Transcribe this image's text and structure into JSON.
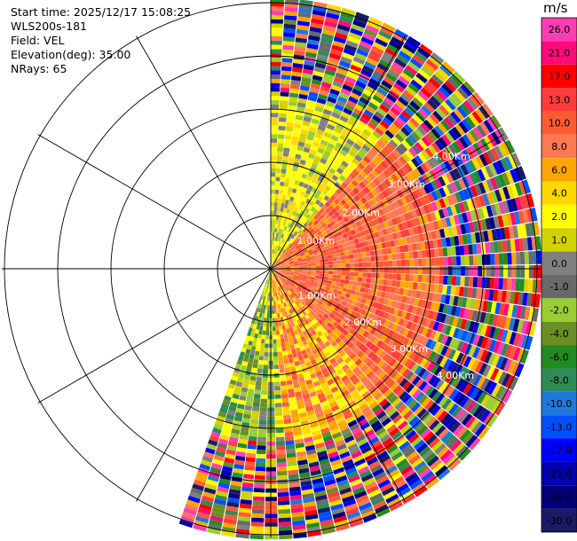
{
  "header": {
    "start_time": "Start time: 2025/12/17 15:08:25",
    "instrument": "WLS200s-181",
    "field": "Field: VEL",
    "elevation": "Elevation(deg): 35.00",
    "nrays": "NRays: 65"
  },
  "chart_data": {
    "type": "heatmap",
    "projection": "polar PPI",
    "field": "VEL",
    "units": "m/s",
    "range_rings_km": [
      1.0,
      2.0,
      3.0,
      4.0,
      5.0
    ],
    "range_ring_labels": [
      "1.00Km",
      "2.00Km",
      "3.00Km",
      "4.00Km"
    ],
    "azimuth_spokes_deg": [
      0,
      30,
      60,
      90,
      120,
      150,
      180,
      210,
      240,
      270,
      300,
      330
    ],
    "sector_azimuth_deg": [
      0,
      200
    ],
    "nrays": 65,
    "colorbar": {
      "label": "m/s",
      "ticks": [
        "26.0",
        "21.0",
        "17.0",
        "13.0",
        "10.0",
        "8.0",
        "6.0",
        "4.0",
        "2.0",
        "1.0",
        "0.0",
        "-1.0",
        "-2.0",
        "-4.0",
        "-6.0",
        "-8.0",
        "-10.0",
        "-13.0",
        "-17.0",
        "-21.0",
        "-26.0",
        "-30.0"
      ],
      "colors": [
        "#ff3cb4",
        "#ff0a78",
        "#ff0000",
        "#ff3c3c",
        "#ff5a32",
        "#ff7850",
        "#ffa500",
        "#ffd700",
        "#ffff00",
        "#d2d200",
        "#808080",
        "#696969",
        "#9acd32",
        "#6b8e23",
        "#228b22",
        "#2e8b57",
        "#1e78dc",
        "#0050ff",
        "#0000ff",
        "#0000b0",
        "#00007a",
        "#1a1a66"
      ]
    }
  }
}
